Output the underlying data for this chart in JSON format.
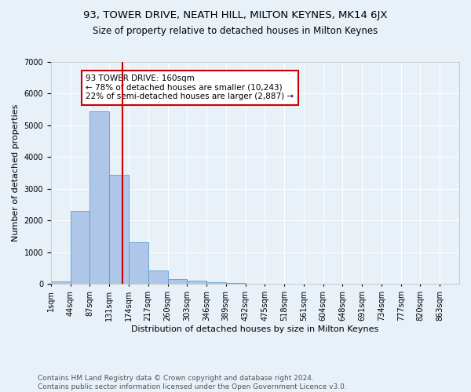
{
  "title": "93, TOWER DRIVE, NEATH HILL, MILTON KEYNES, MK14 6JX",
  "subtitle": "Size of property relative to detached houses in Milton Keynes",
  "xlabel": "Distribution of detached houses by size in Milton Keynes",
  "ylabel": "Number of detached properties",
  "footnote1": "Contains HM Land Registry data © Crown copyright and database right 2024.",
  "footnote2": "Contains public sector information licensed under the Open Government Licence v3.0.",
  "bin_labels": [
    "1sqm",
    "44sqm",
    "87sqm",
    "131sqm",
    "174sqm",
    "217sqm",
    "260sqm",
    "303sqm",
    "346sqm",
    "389sqm",
    "432sqm",
    "475sqm",
    "518sqm",
    "561sqm",
    "604sqm",
    "648sqm",
    "691sqm",
    "734sqm",
    "777sqm",
    "820sqm",
    "863sqm"
  ],
  "bar_values": [
    75,
    2300,
    5450,
    3430,
    1310,
    430,
    165,
    100,
    60,
    30,
    0,
    0,
    0,
    0,
    0,
    0,
    0,
    0,
    0,
    0
  ],
  "bar_color": "#aec6e8",
  "bar_edgecolor": "#5a9fd4",
  "vline_color": "#cc0000",
  "annotation_text": "93 TOWER DRIVE: 160sqm\n← 78% of detached houses are smaller (10,243)\n22% of semi-detached houses are larger (2,887) →",
  "annotation_box_color": "#ffffff",
  "annotation_box_edgecolor": "#cc0000",
  "ylim": [
    0,
    7000
  ],
  "background_color": "#e8f0f8",
  "grid_color": "#ffffff",
  "title_fontsize": 9.5,
  "subtitle_fontsize": 8.5,
  "xlabel_fontsize": 8,
  "ylabel_fontsize": 8,
  "tick_fontsize": 7,
  "annot_fontsize": 7.5,
  "footnote_fontsize": 6.5
}
